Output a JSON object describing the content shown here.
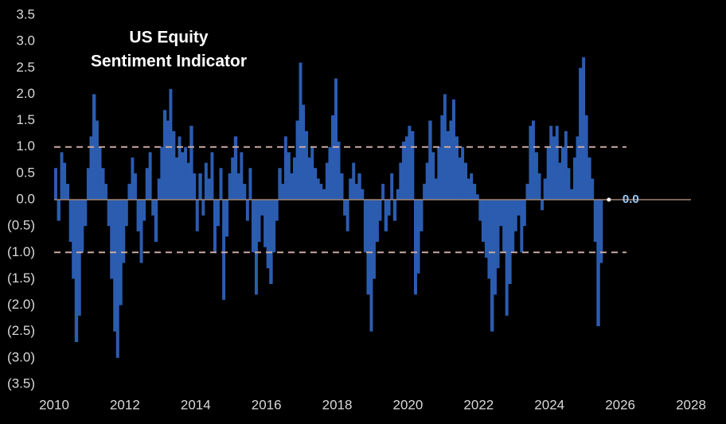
{
  "chart_data": {
    "type": "bar",
    "title": [
      "US Equity",
      "Sentiment Indicator"
    ],
    "color": "#2b5caf",
    "background": "#000000",
    "xlim": [
      2010,
      2028
    ],
    "xticks": [
      2010,
      2012,
      2014,
      2016,
      2018,
      2020,
      2022,
      2024,
      2026,
      2028
    ],
    "ylim": [
      -3.5,
      3.5
    ],
    "yticks": [
      {
        "value": -3.5,
        "label": "(3.5)"
      },
      {
        "value": -3,
        "label": "(3.0)"
      },
      {
        "value": -2.5,
        "label": "(2.5)"
      },
      {
        "value": -2,
        "label": "(2.0)"
      },
      {
        "value": -1.5,
        "label": "(1.5)"
      },
      {
        "value": -1,
        "label": "(1.0)"
      },
      {
        "value": -0.5,
        "label": "(0.5)"
      },
      {
        "value": 0,
        "label": "0.0"
      },
      0.5,
      {
        "value": 1,
        "label": "1.0"
      },
      1.5,
      {
        "value": 2,
        "label": "2.0"
      },
      2.5,
      {
        "value": 3,
        "label": "3.0"
      },
      3.5
    ],
    "hlines": [
      1,
      -1
    ],
    "annotations": [
      {
        "text": "0.0",
        "x": 2025.5,
        "y": 0
      }
    ],
    "x": [
      2010,
      2010.08,
      2010.17,
      2010.25,
      2010.33,
      2010.42,
      2010.5,
      2010.58,
      2010.67,
      2010.75,
      2010.83,
      2010.92,
      2011,
      2011.08,
      2011.17,
      2011.25,
      2011.33,
      2011.42,
      2011.5,
      2011.58,
      2011.67,
      2011.75,
      2011.83,
      2011.92,
      2012,
      2012.08,
      2012.17,
      2012.25,
      2012.33,
      2012.42,
      2012.5,
      2012.58,
      2012.67,
      2012.75,
      2012.83,
      2012.92,
      2013,
      2013.08,
      2013.17,
      2013.25,
      2013.33,
      2013.42,
      2013.5,
      2013.58,
      2013.67,
      2013.75,
      2013.83,
      2013.92,
      2014,
      2014.08,
      2014.17,
      2014.25,
      2014.33,
      2014.42,
      2014.5,
      2014.58,
      2014.67,
      2014.75,
      2014.83,
      2014.92,
      2015,
      2015.08,
      2015.17,
      2015.25,
      2015.33,
      2015.42,
      2015.5,
      2015.58,
      2015.67,
      2015.75,
      2015.83,
      2015.92,
      2016,
      2016.08,
      2016.17,
      2016.25,
      2016.33,
      2016.42,
      2016.5,
      2016.58,
      2016.67,
      2016.75,
      2016.83,
      2016.92,
      2017,
      2017.08,
      2017.17,
      2017.25,
      2017.33,
      2017.42,
      2017.5,
      2017.58,
      2017.67,
      2017.75,
      2017.83,
      2017.92,
      2018,
      2018.08,
      2018.17,
      2018.25,
      2018.33,
      2018.42,
      2018.5,
      2018.58,
      2018.67,
      2018.75,
      2018.83,
      2018.92,
      2019,
      2019.08,
      2019.17,
      2019.25,
      2019.33,
      2019.42,
      2019.5,
      2019.58,
      2019.67,
      2019.75,
      2019.83,
      2019.92,
      2020,
      2020.08,
      2020.17,
      2020.25,
      2020.33,
      2020.42,
      2020.5,
      2020.58,
      2020.67,
      2020.75,
      2020.83,
      2020.92,
      2021,
      2021.08,
      2021.17,
      2021.25,
      2021.33,
      2021.42,
      2021.5,
      2021.58,
      2021.67,
      2021.75,
      2021.83,
      2021.92,
      2022,
      2022.08,
      2022.17,
      2022.25,
      2022.33,
      2022.42,
      2022.5,
      2022.58,
      2022.67,
      2022.75,
      2022.83,
      2022.92,
      2023,
      2023.08,
      2023.17,
      2023.25,
      2023.33,
      2023.42,
      2023.5,
      2023.58,
      2023.67,
      2023.75,
      2023.83,
      2023.92,
      2024,
      2024.08,
      2024.17,
      2024.25,
      2024.33,
      2024.42,
      2024.5,
      2024.58,
      2024.67,
      2024.75,
      2024.83,
      2024.92,
      2025,
      2025.08,
      2025.17,
      2025.25,
      2025.33,
      2025.42,
      2025.5
    ],
    "values": [
      0.6,
      -0.4,
      0.9,
      0.7,
      0.3,
      -0.8,
      -1.5,
      -2.7,
      -2.2,
      -1.0,
      -0.5,
      0.6,
      1.2,
      2.0,
      1.5,
      1.0,
      0.6,
      0.3,
      -0.5,
      -1.5,
      -2.5,
      -3.0,
      -2.0,
      -1.2,
      -0.5,
      0.3,
      0.8,
      0.5,
      -0.6,
      -1.2,
      -0.4,
      0.6,
      0.9,
      -0.3,
      -0.8,
      0.4,
      1.0,
      1.7,
      1.5,
      2.1,
      1.3,
      0.8,
      1.2,
      0.9,
      1.0,
      0.7,
      1.4,
      0.5,
      -0.6,
      0.5,
      -0.3,
      0.7,
      0.4,
      0.9,
      -1.0,
      -0.5,
      0.6,
      -1.9,
      -0.7,
      0.5,
      0.8,
      1.2,
      0.5,
      0.9,
      0.3,
      -0.4,
      0.6,
      -1.0,
      -1.8,
      -0.8,
      -0.3,
      -0.9,
      -1.3,
      -1.6,
      -1.0,
      -0.4,
      0.6,
      0.3,
      1.2,
      0.9,
      0.5,
      0.8,
      1.5,
      2.6,
      1.8,
      1.3,
      0.8,
      1.0,
      0.6,
      0.4,
      0.3,
      0.2,
      0.7,
      1.0,
      1.6,
      2.3,
      1.1,
      0.5,
      -0.3,
      -0.6,
      0.4,
      0.7,
      0.3,
      0.5,
      0.2,
      -1.0,
      -1.8,
      -2.5,
      -1.5,
      -0.8,
      -0.4,
      0.3,
      -0.6,
      -0.3,
      0.5,
      -0.4,
      0.2,
      0.7,
      1.1,
      1.2,
      1.4,
      1.3,
      -1.8,
      -1.4,
      -0.6,
      0.3,
      0.7,
      1.5,
      0.9,
      0.4,
      1.0,
      1.6,
      2.0,
      1.3,
      1.5,
      1.9,
      1.2,
      0.8,
      1.0,
      0.7,
      0.4,
      0.5,
      0.3,
      0.1,
      -0.4,
      -0.8,
      -1.1,
      -1.5,
      -2.5,
      -1.8,
      -1.3,
      -0.5,
      -1.0,
      -2.2,
      -1.6,
      -1.0,
      -0.6,
      -0.3,
      -1.0,
      -0.5,
      0.3,
      1.4,
      1.5,
      0.9,
      0.5,
      -0.2,
      0.4,
      1.0,
      1.4,
      1.2,
      1.4,
      0.7,
      1.0,
      1.3,
      0.6,
      0.2,
      0.8,
      1.2,
      2.5,
      2.7,
      1.6,
      0.8,
      0.4,
      -0.8,
      -2.4,
      -1.2,
      0.0
    ]
  }
}
